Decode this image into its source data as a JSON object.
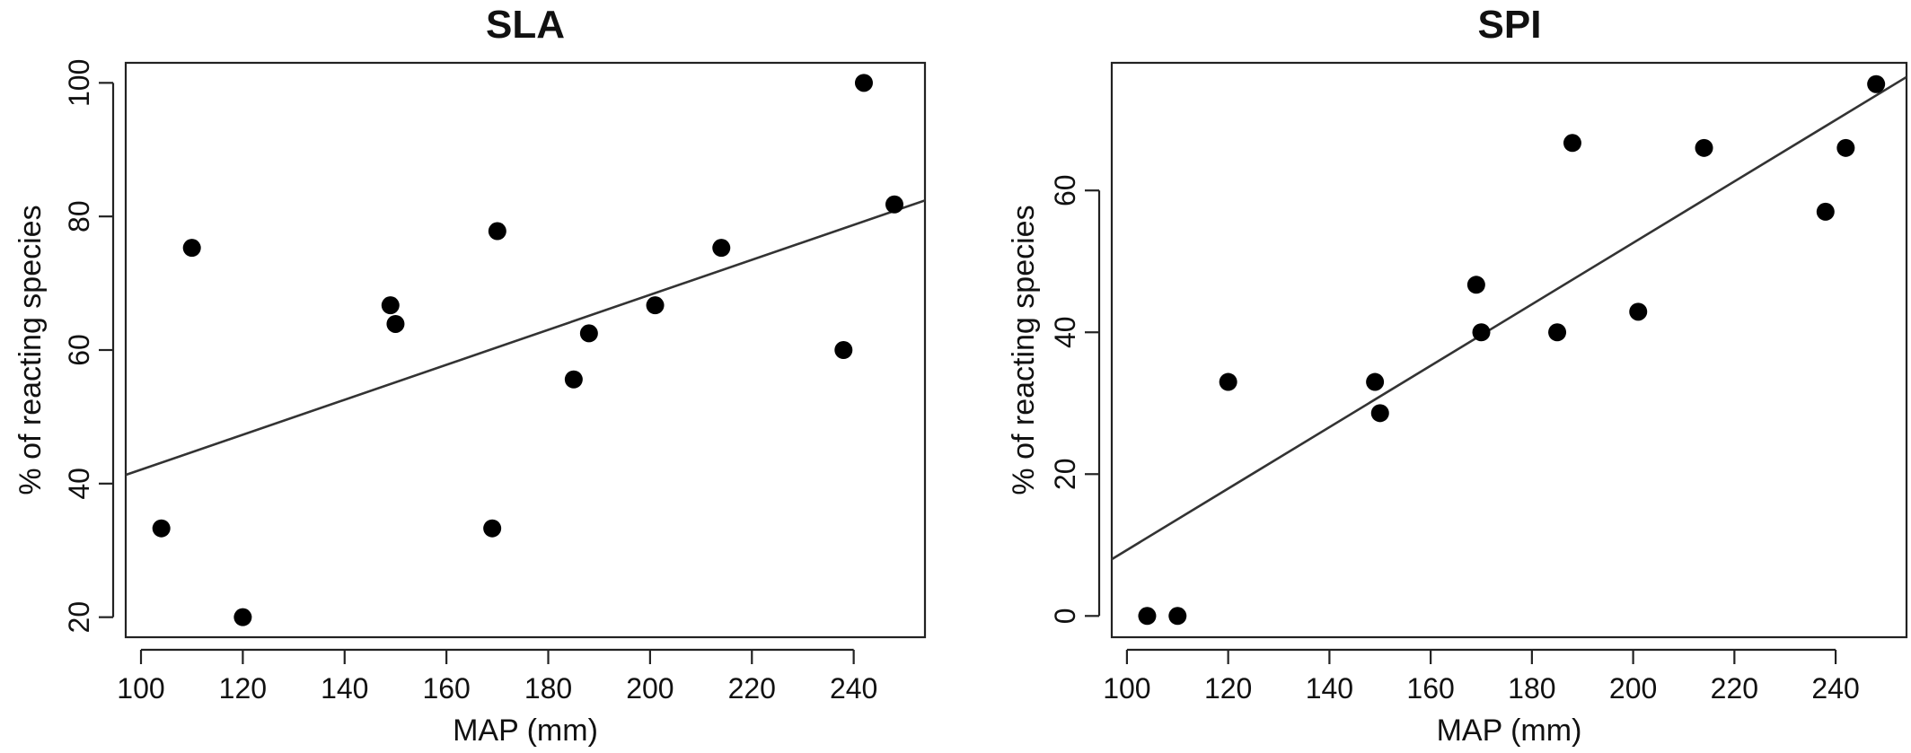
{
  "chart_data": [
    {
      "type": "scatter",
      "title": "SLA",
      "xlabel": "MAP (mm)",
      "ylabel": "% of reacting species",
      "xlim": [
        97,
        254
      ],
      "ylim": [
        17,
        103
      ],
      "xticks": [
        100,
        120,
        140,
        160,
        180,
        200,
        220,
        240
      ],
      "yticks": [
        20,
        40,
        60,
        80,
        100
      ],
      "grid": false,
      "points": [
        {
          "x": 104,
          "y": 33.3
        },
        {
          "x": 110,
          "y": 75.3
        },
        {
          "x": 120,
          "y": 20
        },
        {
          "x": 149,
          "y": 66.7
        },
        {
          "x": 150,
          "y": 63.9
        },
        {
          "x": 169,
          "y": 33.3
        },
        {
          "x": 170,
          "y": 77.8
        },
        {
          "x": 185,
          "y": 55.6
        },
        {
          "x": 188,
          "y": 62.5
        },
        {
          "x": 201,
          "y": 66.7
        },
        {
          "x": 214,
          "y": 75.3
        },
        {
          "x": 238,
          "y": 60
        },
        {
          "x": 242,
          "y": 100
        },
        {
          "x": 248,
          "y": 81.8
        }
      ],
      "fit_line": {
        "x": [
          97,
          254
        ],
        "y": [
          41.3,
          82.4
        ]
      }
    },
    {
      "type": "scatter",
      "title": "SPI",
      "xlabel": "MAP (mm)",
      "ylabel": "% of reacting species",
      "xlim": [
        97,
        254
      ],
      "ylim": [
        -3,
        78
      ],
      "xticks": [
        100,
        120,
        140,
        160,
        180,
        200,
        220,
        240
      ],
      "yticks": [
        0,
        20,
        40,
        60
      ],
      "grid": false,
      "points": [
        {
          "x": 104,
          "y": 0
        },
        {
          "x": 110,
          "y": 0
        },
        {
          "x": 120,
          "y": 33
        },
        {
          "x": 149,
          "y": 33
        },
        {
          "x": 150,
          "y": 28.6
        },
        {
          "x": 169,
          "y": 46.7
        },
        {
          "x": 170,
          "y": 40
        },
        {
          "x": 185,
          "y": 40
        },
        {
          "x": 188,
          "y": 66.7
        },
        {
          "x": 201,
          "y": 42.9
        },
        {
          "x": 214,
          "y": 66
        },
        {
          "x": 238,
          "y": 57
        },
        {
          "x": 242,
          "y": 66
        },
        {
          "x": 248,
          "y": 75
        }
      ],
      "fit_line": {
        "x": [
          97,
          254
        ],
        "y": [
          8,
          76
        ]
      }
    }
  ]
}
